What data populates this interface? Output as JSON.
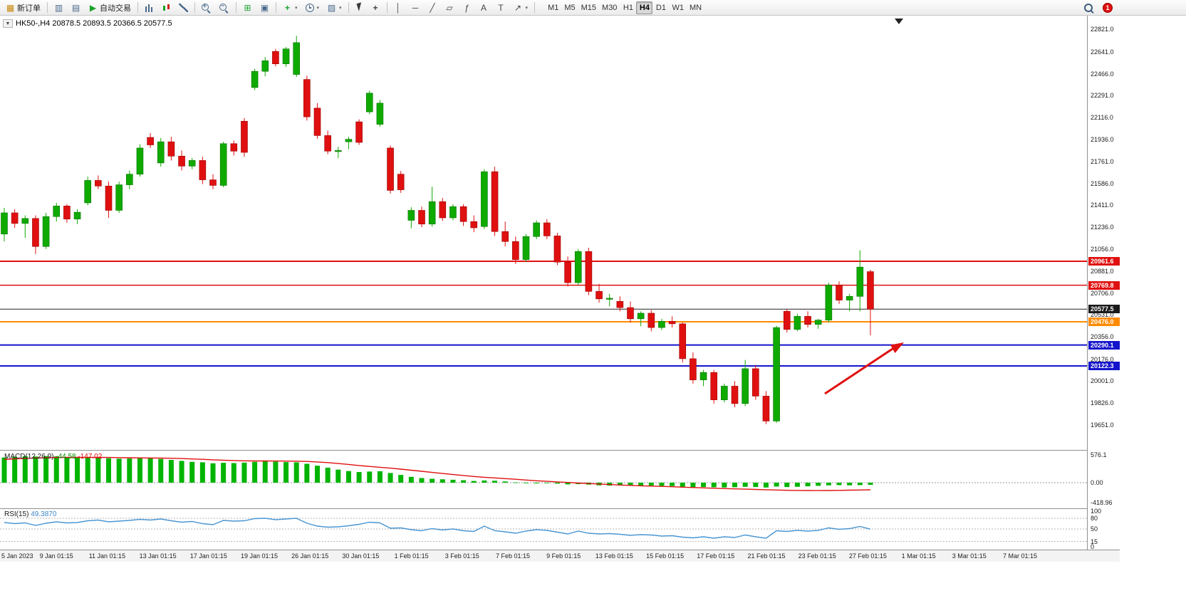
{
  "colors": {
    "bull": "#0faa00",
    "bull_border": "#067400",
    "bear": "#e01010",
    "bear_border": "#9c0000",
    "macd_hist": "#00b400",
    "macd_signal": "#e01010",
    "rsi_line": "#4a96d2",
    "arrow": "#e01010"
  },
  "icons": {
    "new_order": "▦",
    "chart_window": "▥",
    "doc": "▤",
    "play": "▶",
    "tile": "⊞",
    "cascade": "▣",
    "indicators_plus": "+",
    "templates": "▨",
    "caret": "▾",
    "crosshair": "+",
    "vline": "│",
    "hline": "─",
    "trendline": "╱",
    "channel": "▱",
    "fibonacci": "ƒ",
    "text": "A",
    "label": "T",
    "arrow_tool": "↗",
    "collapse": "▼",
    "plus": "+",
    "minus": "−"
  },
  "toolbar": {
    "new_order_label": "新订单",
    "autotrade_label": "自动交易",
    "timeframes": [
      "M1",
      "M5",
      "M15",
      "M30",
      "H1",
      "H4",
      "D1",
      "W1",
      "MN"
    ],
    "active_timeframe": "H4",
    "notification_badge": "1"
  },
  "chart": {
    "symbol_info": "HK50-,H4 20878.5 20893.5 20366.5 20577.5"
  },
  "price_axis": {
    "grid_labels": [
      "22821.0",
      "22641.0",
      "22466.0",
      "22291.0",
      "22116.0",
      "21936.0",
      "21761.0",
      "21586.0",
      "21411.0",
      "21236.0",
      "21056.0",
      "20881.0",
      "20706.0",
      "20531.0",
      "20356.0",
      "20176.0",
      "20001.0",
      "19826.0",
      "19651.0"
    ],
    "tags": [
      {
        "label": "20961.6",
        "price": 20961.6,
        "color": "#e01010"
      },
      {
        "label": "20769.8",
        "price": 20769.8,
        "color": "#e01010"
      },
      {
        "label": "20577.5",
        "price": 20577.5,
        "color": "#1a1a1a"
      },
      {
        "label": "20476.0",
        "price": 20476.0,
        "color": "#ff8a00"
      },
      {
        "label": "20290.1",
        "price": 20290.1,
        "color": "#1414cc"
      },
      {
        "label": "20122.3",
        "price": 20122.3,
        "color": "#1414cc"
      }
    ]
  },
  "hlines": [
    {
      "price": 20961.6,
      "color": "#e01010",
      "width": 2
    },
    {
      "price": 20769.8,
      "color": "#e01010",
      "width": 1.5
    },
    {
      "price": 20577.5,
      "color": "#222222",
      "width": 1
    },
    {
      "price": 20476.0,
      "color": "#ff8a00",
      "width": 2
    },
    {
      "price": 20290.1,
      "color": "#1414cc",
      "width": 2
    },
    {
      "price": 20122.3,
      "color": "#1414cc",
      "width": 2
    }
  ],
  "time_axis": [
    "5 Jan 2023",
    "9 Jan 01:15",
    "11 Jan 01:15",
    "13 Jan 01:15",
    "17 Jan 01:15",
    "19 Jan 01:15",
    "26 Jan 01:15",
    "30 Jan 01:15",
    "1 Feb 01:15",
    "3 Feb 01:15",
    "7 Feb 01:15",
    "9 Feb 01:15",
    "13 Feb 01:15",
    "15 Feb 01:15",
    "17 Feb 01:15",
    "21 Feb 01:15",
    "23 Feb 01:15",
    "27 Feb 01:15",
    "1 Mar 01:15",
    "3 Mar 01:15",
    "7 Mar 01:15"
  ],
  "macd_panel": {
    "label": "MACD(12,26,9)",
    "value": "-44.58",
    "signal": "-147.02",
    "scale": [
      "576.1",
      "0.00",
      "-418.96"
    ]
  },
  "rsi_panel": {
    "label": "RSI(15)",
    "value": "49.3870",
    "scale": [
      "100",
      "80",
      "50",
      "15",
      "0"
    ]
  },
  "chart_data": {
    "type": "candlestick",
    "symbol": "HK50-",
    "timeframe": "H4",
    "last_ohlc": {
      "open": 20878.5,
      "high": 20893.5,
      "low": 20366.5,
      "close": 20577.5
    },
    "price_axis_range": [
      19651.0,
      22821.0
    ],
    "horizontal_levels": [
      20961.6,
      20769.8,
      20577.5,
      20476.0,
      20290.1,
      20122.3
    ],
    "candles_ohlc": [
      [
        21180,
        21390,
        21120,
        21350
      ],
      [
        21350,
        21380,
        21230,
        21265
      ],
      [
        21265,
        21330,
        21150,
        21305
      ],
      [
        21305,
        21330,
        21020,
        21080
      ],
      [
        21080,
        21350,
        21060,
        21320
      ],
      [
        21320,
        21430,
        21280,
        21405
      ],
      [
        21405,
        21420,
        21270,
        21300
      ],
      [
        21300,
        21380,
        21260,
        21355
      ],
      [
        21430,
        21640,
        21410,
        21610
      ],
      [
        21610,
        21650,
        21540,
        21565
      ],
      [
        21565,
        21600,
        21310,
        21370
      ],
      [
        21370,
        21600,
        21350,
        21575
      ],
      [
        21575,
        21690,
        21540,
        21660
      ],
      [
        21660,
        21900,
        21640,
        21870
      ],
      [
        21955,
        21990,
        21870,
        21895
      ],
      [
        21750,
        21950,
        21720,
        21920
      ],
      [
        21920,
        21960,
        21770,
        21805
      ],
      [
        21805,
        21850,
        21690,
        21725
      ],
      [
        21725,
        21790,
        21700,
        21770
      ],
      [
        21770,
        21800,
        21580,
        21615
      ],
      [
        21615,
        21660,
        21540,
        21570
      ],
      [
        21570,
        21920,
        21555,
        21905
      ],
      [
        21905,
        21930,
        21810,
        21845
      ],
      [
        22085,
        22110,
        21800,
        21835
      ],
      [
        22355,
        22505,
        22335,
        22485
      ],
      [
        22485,
        22600,
        22445,
        22570
      ],
      [
        22645,
        22665,
        22525,
        22545
      ],
      [
        22545,
        22680,
        22520,
        22665
      ],
      [
        22460,
        22770,
        22440,
        22715
      ],
      [
        22420,
        22450,
        22090,
        22120
      ],
      [
        22190,
        22230,
        21945,
        21970
      ],
      [
        21970,
        22010,
        21820,
        21845
      ],
      [
        21845,
        21880,
        21790,
        21850
      ],
      [
        21920,
        21960,
        21860,
        21940
      ],
      [
        22080,
        22100,
        21895,
        21915
      ],
      [
        22160,
        22330,
        22140,
        22310
      ],
      [
        22060,
        22255,
        22040,
        22230
      ],
      [
        21870,
        21890,
        21505,
        21530
      ],
      [
        21660,
        21685,
        21510,
        21535
      ],
      [
        21290,
        21395,
        21225,
        21370
      ],
      [
        21370,
        21400,
        21235,
        21260
      ],
      [
        21260,
        21560,
        21240,
        21440
      ],
      [
        21440,
        21470,
        21285,
        21310
      ],
      [
        21310,
        21420,
        21290,
        21400
      ],
      [
        21400,
        21420,
        21245,
        21280
      ],
      [
        21280,
        21330,
        21195,
        21230
      ],
      [
        21240,
        21700,
        21220,
        21680
      ],
      [
        21680,
        21720,
        21165,
        21200
      ],
      [
        21200,
        21280,
        21080,
        21120
      ],
      [
        21120,
        21160,
        20940,
        20975
      ],
      [
        20975,
        21180,
        20955,
        21160
      ],
      [
        21160,
        21290,
        21140,
        21270
      ],
      [
        21270,
        21300,
        21140,
        21165
      ],
      [
        21165,
        21190,
        20930,
        20955
      ],
      [
        20955,
        21000,
        20760,
        20790
      ],
      [
        20790,
        21060,
        20770,
        21040
      ],
      [
        21040,
        21070,
        20690,
        20720
      ],
      [
        20720,
        20780,
        20630,
        20660
      ],
      [
        20660,
        20700,
        20600,
        20665
      ],
      [
        20640,
        20680,
        20560,
        20590
      ],
      [
        20590,
        20640,
        20470,
        20500
      ],
      [
        20500,
        20560,
        20440,
        20545
      ],
      [
        20545,
        20570,
        20400,
        20430
      ],
      [
        20430,
        20500,
        20410,
        20480
      ],
      [
        20480,
        20520,
        20430,
        20460
      ],
      [
        20460,
        20470,
        20150,
        20180
      ],
      [
        20180,
        20230,
        19980,
        20010
      ],
      [
        20010,
        20090,
        19960,
        20070
      ],
      [
        20070,
        20090,
        19820,
        19850
      ],
      [
        19850,
        19980,
        19830,
        19960
      ],
      [
        19960,
        20000,
        19790,
        19820
      ],
      [
        19820,
        20170,
        19800,
        20100
      ],
      [
        20100,
        20130,
        19850,
        19880
      ],
      [
        19880,
        19920,
        19655,
        19680
      ],
      [
        19680,
        20445,
        19665,
        20430
      ],
      [
        20560,
        20580,
        20390,
        20415
      ],
      [
        20415,
        20540,
        20400,
        20520
      ],
      [
        20520,
        20560,
        20430,
        20455
      ],
      [
        20455,
        20500,
        20420,
        20490
      ],
      [
        20490,
        20790,
        20470,
        20770
      ],
      [
        20770,
        20800,
        20620,
        20650
      ],
      [
        20650,
        20700,
        20560,
        20680
      ],
      [
        20680,
        21050,
        20560,
        20915
      ],
      [
        20878.5,
        20893.5,
        20366.5,
        20577.5
      ]
    ],
    "macd": {
      "histogram": [
        520,
        535,
        545,
        540,
        548,
        542,
        530,
        525,
        530,
        520,
        505,
        495,
        500,
        510,
        505,
        490,
        470,
        450,
        430,
        420,
        400,
        410,
        405,
        415,
        430,
        440,
        435,
        425,
        420,
        390,
        350,
        310,
        270,
        240,
        220,
        230,
        235,
        200,
        160,
        120,
        95,
        80,
        70,
        60,
        50,
        35,
        45,
        40,
        25,
        5,
        -10,
        -15,
        -10,
        -20,
        -35,
        -30,
        -40,
        -55,
        -60,
        -55,
        -60,
        -65,
        -60,
        -65,
        -70,
        -85,
        -95,
        -90,
        -95,
        -100,
        -95,
        -85,
        -90,
        -100,
        -80,
        -90,
        -85,
        -75,
        -65,
        -55,
        -50,
        -55,
        -50,
        -44.58
      ],
      "signal": [
        480,
        492,
        502,
        510,
        516,
        520,
        522,
        523,
        523,
        522,
        520,
        517,
        514,
        512,
        510,
        508,
        504,
        498,
        490,
        482,
        472,
        464,
        457,
        452,
        449,
        448,
        447,
        446,
        444,
        438,
        428,
        414,
        396,
        376,
        355,
        335,
        318,
        300,
        280,
        258,
        235,
        212,
        190,
        168,
        148,
        128,
        112,
        98,
        84,
        70,
        55,
        40,
        28,
        16,
        4,
        -8,
        -18,
        -28,
        -38,
        -48,
        -56,
        -64,
        -70,
        -77,
        -84,
        -92,
        -100,
        -108,
        -115,
        -122,
        -128,
        -134,
        -140,
        -146,
        -152,
        -157,
        -160,
        -162,
        -163,
        -162,
        -159,
        -155,
        -151,
        -147.02
      ],
      "scale_range": [
        576.1,
        -418.96
      ]
    },
    "rsi": {
      "values": [
        68,
        65,
        67,
        60,
        66,
        70,
        67,
        68,
        73,
        75,
        70,
        72,
        74,
        77,
        75,
        78,
        73,
        69,
        71,
        65,
        62,
        74,
        72,
        73,
        79,
        80,
        76,
        78,
        80,
        66,
        58,
        55,
        56,
        59,
        63,
        69,
        67,
        52,
        53,
        48,
        45,
        51,
        47,
        50,
        45,
        43,
        58,
        45,
        42,
        38,
        44,
        48,
        46,
        41,
        36,
        44,
        38,
        36,
        37,
        35,
        32,
        34,
        33,
        30,
        31,
        27,
        25,
        28,
        24,
        28,
        26,
        33,
        28,
        24,
        45,
        43,
        46,
        44,
        46,
        53,
        49,
        51,
        57,
        49.387
      ],
      "levels": [
        80,
        50,
        15
      ]
    }
  }
}
